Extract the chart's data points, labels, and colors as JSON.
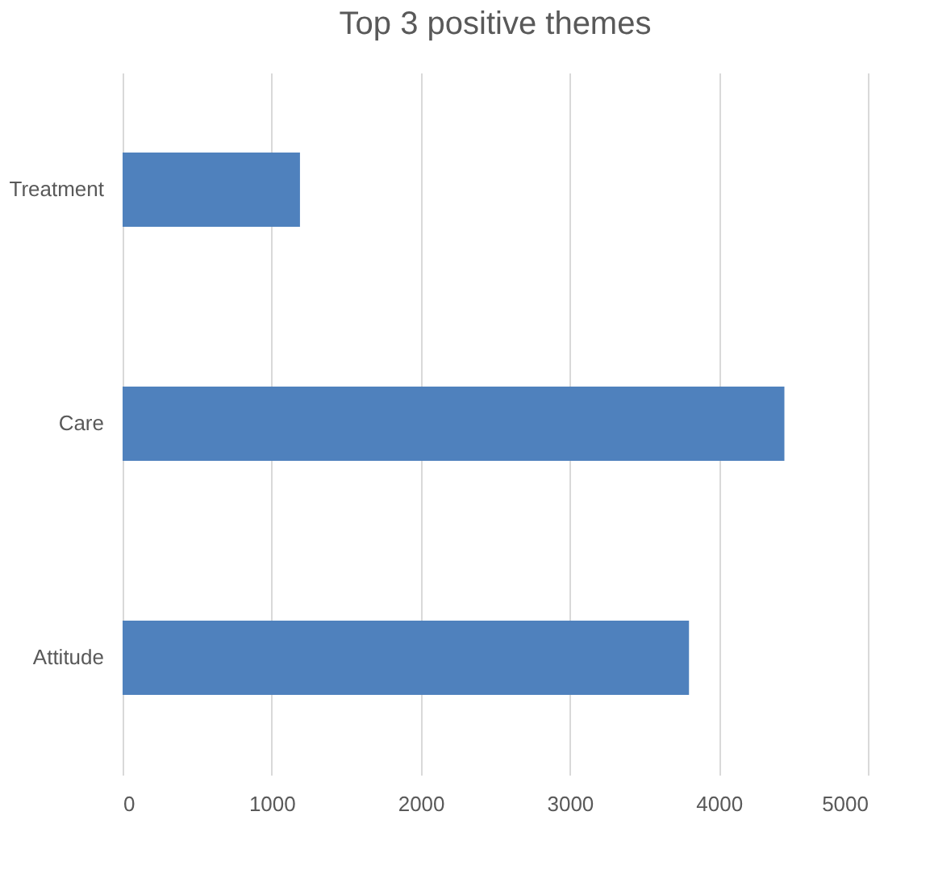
{
  "chart_data": {
    "type": "bar",
    "orientation": "horizontal",
    "title": "Top 3 positive themes",
    "categories": [
      "Treatment",
      "Care",
      "Attitude"
    ],
    "values": [
      1190,
      4440,
      3800
    ],
    "color": "#4f81bd",
    "xlim": [
      0,
      5000
    ],
    "xticks": [
      0,
      1000,
      2000,
      3000,
      4000,
      5000
    ],
    "grid": "x"
  }
}
